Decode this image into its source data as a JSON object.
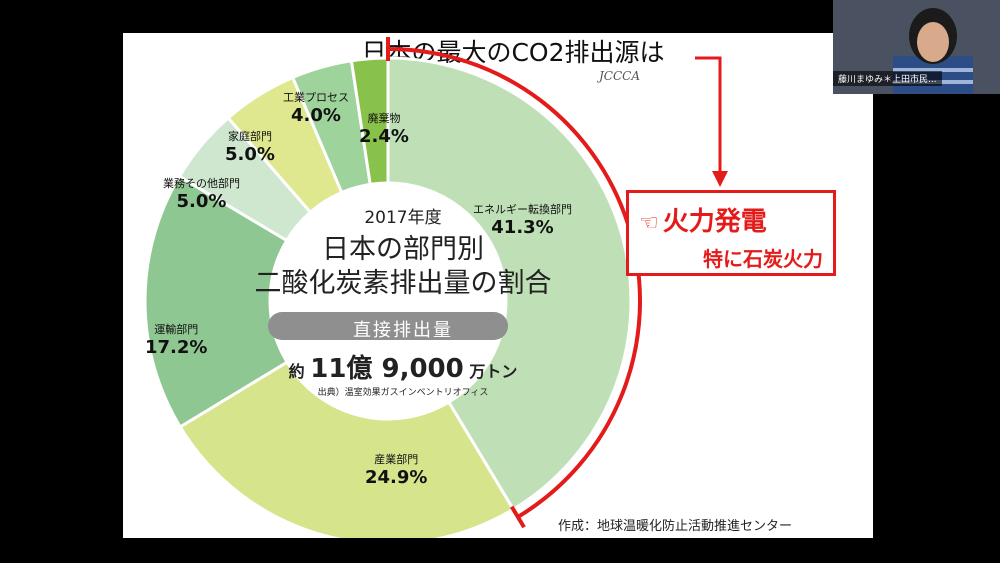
{
  "slide": {
    "title": "日本の最大のCO2排出源は",
    "logo": "JCCCA",
    "center": {
      "year": "2017年度",
      "title_line1": "日本の部門別",
      "title_line2": "二酸化炭素排出量の割合",
      "band": "直接排出量",
      "total_prefix": "約",
      "total_value": "11億 9,000",
      "total_unit": "万トン",
      "source": "出典）温室効果ガスインベントリオフィス"
    },
    "callout": {
      "icon": "pointing-hand-icon",
      "line1": "火力発電",
      "line2": "特に石炭火力"
    },
    "credit": "作成：地球温暖化防止活動推進センター"
  },
  "participant": {
    "name": "藤川まゆみ＊上田市民..."
  },
  "colors": {
    "highlight": "#e31b1b",
    "energy": "#bfe0b6",
    "industry": "#d6e58c",
    "transport": "#8fc792",
    "business": "#cfe7cf",
    "household": "#dfe88e",
    "process": "#9fd39c",
    "waste": "#89c24a"
  },
  "chart_data": {
    "type": "pie",
    "donut": true,
    "title": "日本の部門別 二酸化炭素排出量の割合",
    "subtitle": "直接排出量",
    "categories": [
      "エネルギー転換部門",
      "産業部門",
      "運輸部門",
      "業務その他部門",
      "家庭部門",
      "工業プロセス",
      "廃棄物"
    ],
    "values": [
      41.3,
      24.9,
      17.2,
      5.0,
      5.0,
      4.0,
      2.4
    ],
    "labels": [
      "41.3%",
      "24.9%",
      "17.2%",
      "5.0%",
      "5.0%",
      "4.0%",
      "2.4%"
    ],
    "colors": [
      "#bfe0b6",
      "#d6e58c",
      "#8fc792",
      "#cfe7cf",
      "#dfe88e",
      "#9fd39c",
      "#89c24a"
    ]
  }
}
